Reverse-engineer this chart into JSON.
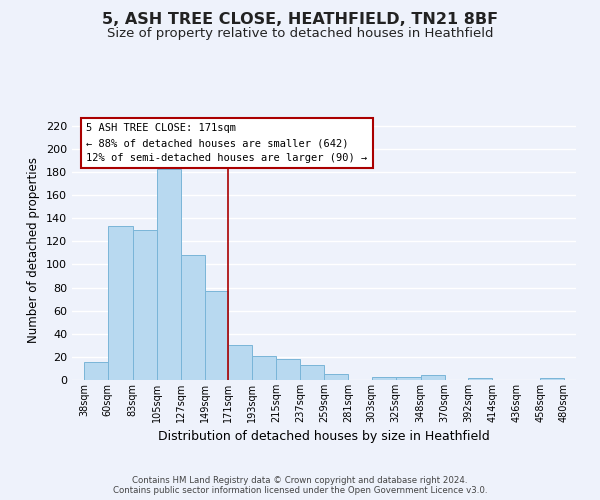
{
  "title1": "5, ASH TREE CLOSE, HEATHFIELD, TN21 8BF",
  "title2": "Size of property relative to detached houses in Heathfield",
  "xlabel": "Distribution of detached houses by size in Heathfield",
  "ylabel": "Number of detached properties",
  "bar_left_edges": [
    38,
    60,
    83,
    105,
    127,
    149,
    171,
    193,
    215,
    237,
    259,
    281,
    303,
    325,
    348,
    370,
    392,
    414,
    436,
    458
  ],
  "bar_heights": [
    16,
    133,
    130,
    183,
    108,
    77,
    30,
    21,
    18,
    13,
    5,
    0,
    3,
    3,
    4,
    0,
    2,
    0,
    0,
    2
  ],
  "bar_widths": [
    22,
    23,
    22,
    22,
    22,
    22,
    22,
    22,
    22,
    22,
    22,
    22,
    22,
    23,
    22,
    22,
    22,
    22,
    22,
    22
  ],
  "bar_color": "#b8d9f0",
  "bar_edge_color": "#7ab5d8",
  "vline_x": 171,
  "vline_color": "#aa0000",
  "xtick_labels": [
    "38sqm",
    "60sqm",
    "83sqm",
    "105sqm",
    "127sqm",
    "149sqm",
    "171sqm",
    "193sqm",
    "215sqm",
    "237sqm",
    "259sqm",
    "281sqm",
    "303sqm",
    "325sqm",
    "348sqm",
    "370sqm",
    "392sqm",
    "414sqm",
    "436sqm",
    "458sqm",
    "480sqm"
  ],
  "xtick_positions": [
    38,
    60,
    83,
    105,
    127,
    149,
    171,
    193,
    215,
    237,
    259,
    281,
    303,
    325,
    348,
    370,
    392,
    414,
    436,
    458,
    480
  ],
  "ylim": [
    0,
    225
  ],
  "xlim": [
    27,
    491
  ],
  "yticks": [
    0,
    20,
    40,
    60,
    80,
    100,
    120,
    140,
    160,
    180,
    200,
    220
  ],
  "annotation_title": "5 ASH TREE CLOSE: 171sqm",
  "annotation_line1": "← 88% of detached houses are smaller (642)",
  "annotation_line2": "12% of semi-detached houses are larger (90) →",
  "footer1": "Contains HM Land Registry data © Crown copyright and database right 2024.",
  "footer2": "Contains public sector information licensed under the Open Government Licence v3.0.",
  "background_color": "#eef2fb",
  "grid_color": "#ffffff",
  "title1_fontsize": 11.5,
  "title2_fontsize": 9.5
}
